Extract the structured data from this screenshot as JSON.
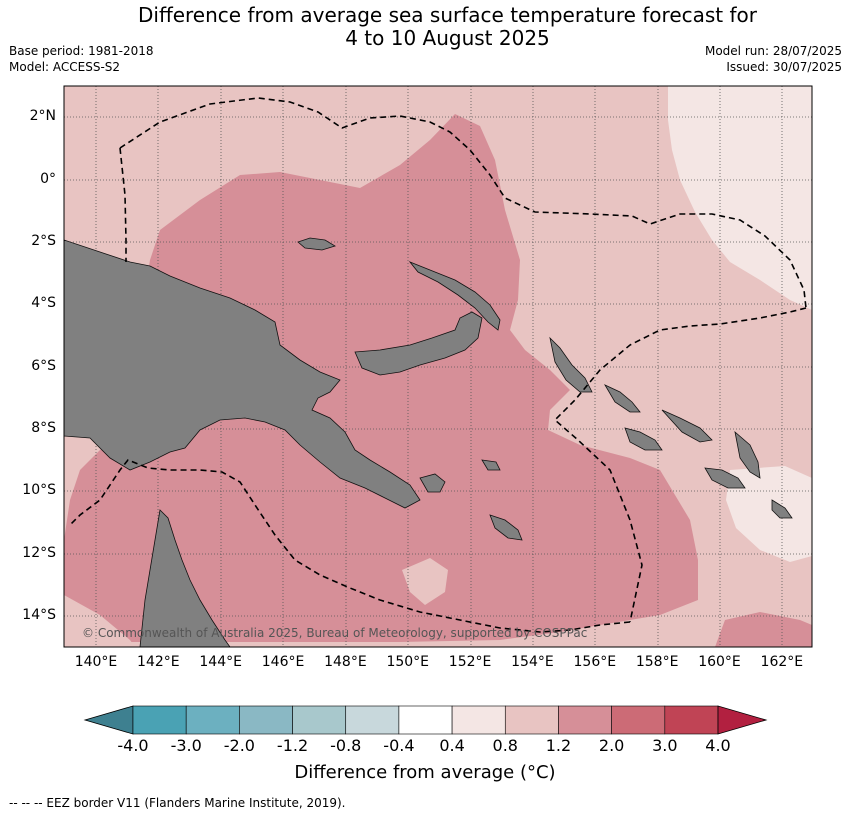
{
  "title_line1": "Difference from average sea surface temperature forecast for",
  "title_line2": "4 to 10 August 2025",
  "base_period": "Base period: 1981-2018",
  "model": "Model: ACCESS-S2",
  "model_run": "Model run: 28/07/2025",
  "issued": "Issued: 30/07/2025",
  "lat_labels": [
    "2°N",
    "0°",
    "2°S",
    "4°S",
    "6°S",
    "8°S",
    "10°S",
    "12°S",
    "14°S"
  ],
  "lon_labels": [
    "140°E",
    "142°E",
    "144°E",
    "146°E",
    "148°E",
    "150°E",
    "152°E",
    "154°E",
    "156°E",
    "158°E",
    "160°E",
    "162°E"
  ],
  "copyright": "© Commonwealth of Australia 2025, Bureau of Meteorology, supported by COSPPac",
  "colorbar": {
    "ticks": [
      "-4.0",
      "-3.0",
      "-2.0",
      "-1.2",
      "-0.8",
      "-0.4",
      "0.4",
      "0.8",
      "1.2",
      "2.0",
      "3.0",
      "4.0"
    ],
    "colors": [
      "#3e8090",
      "#4aa2b4",
      "#6cb0c0",
      "#8ab8c4",
      "#a8c8cc",
      "#c8d8dc",
      "#ffffff",
      "#f4e6e4",
      "#e8c4c2",
      "#d68f98",
      "#cc6b76",
      "#c04455",
      "#b22040"
    ],
    "title": "Difference from average (°C)"
  },
  "footnote": "--  --  -- EEZ border V11 (Flanders Marine Institute, 2019).",
  "colors": {
    "land": "#808080",
    "ocean_warm": "#d68f98",
    "ocean_mild": "#e8c4c2",
    "ocean_slight": "#f4e6e4"
  }
}
